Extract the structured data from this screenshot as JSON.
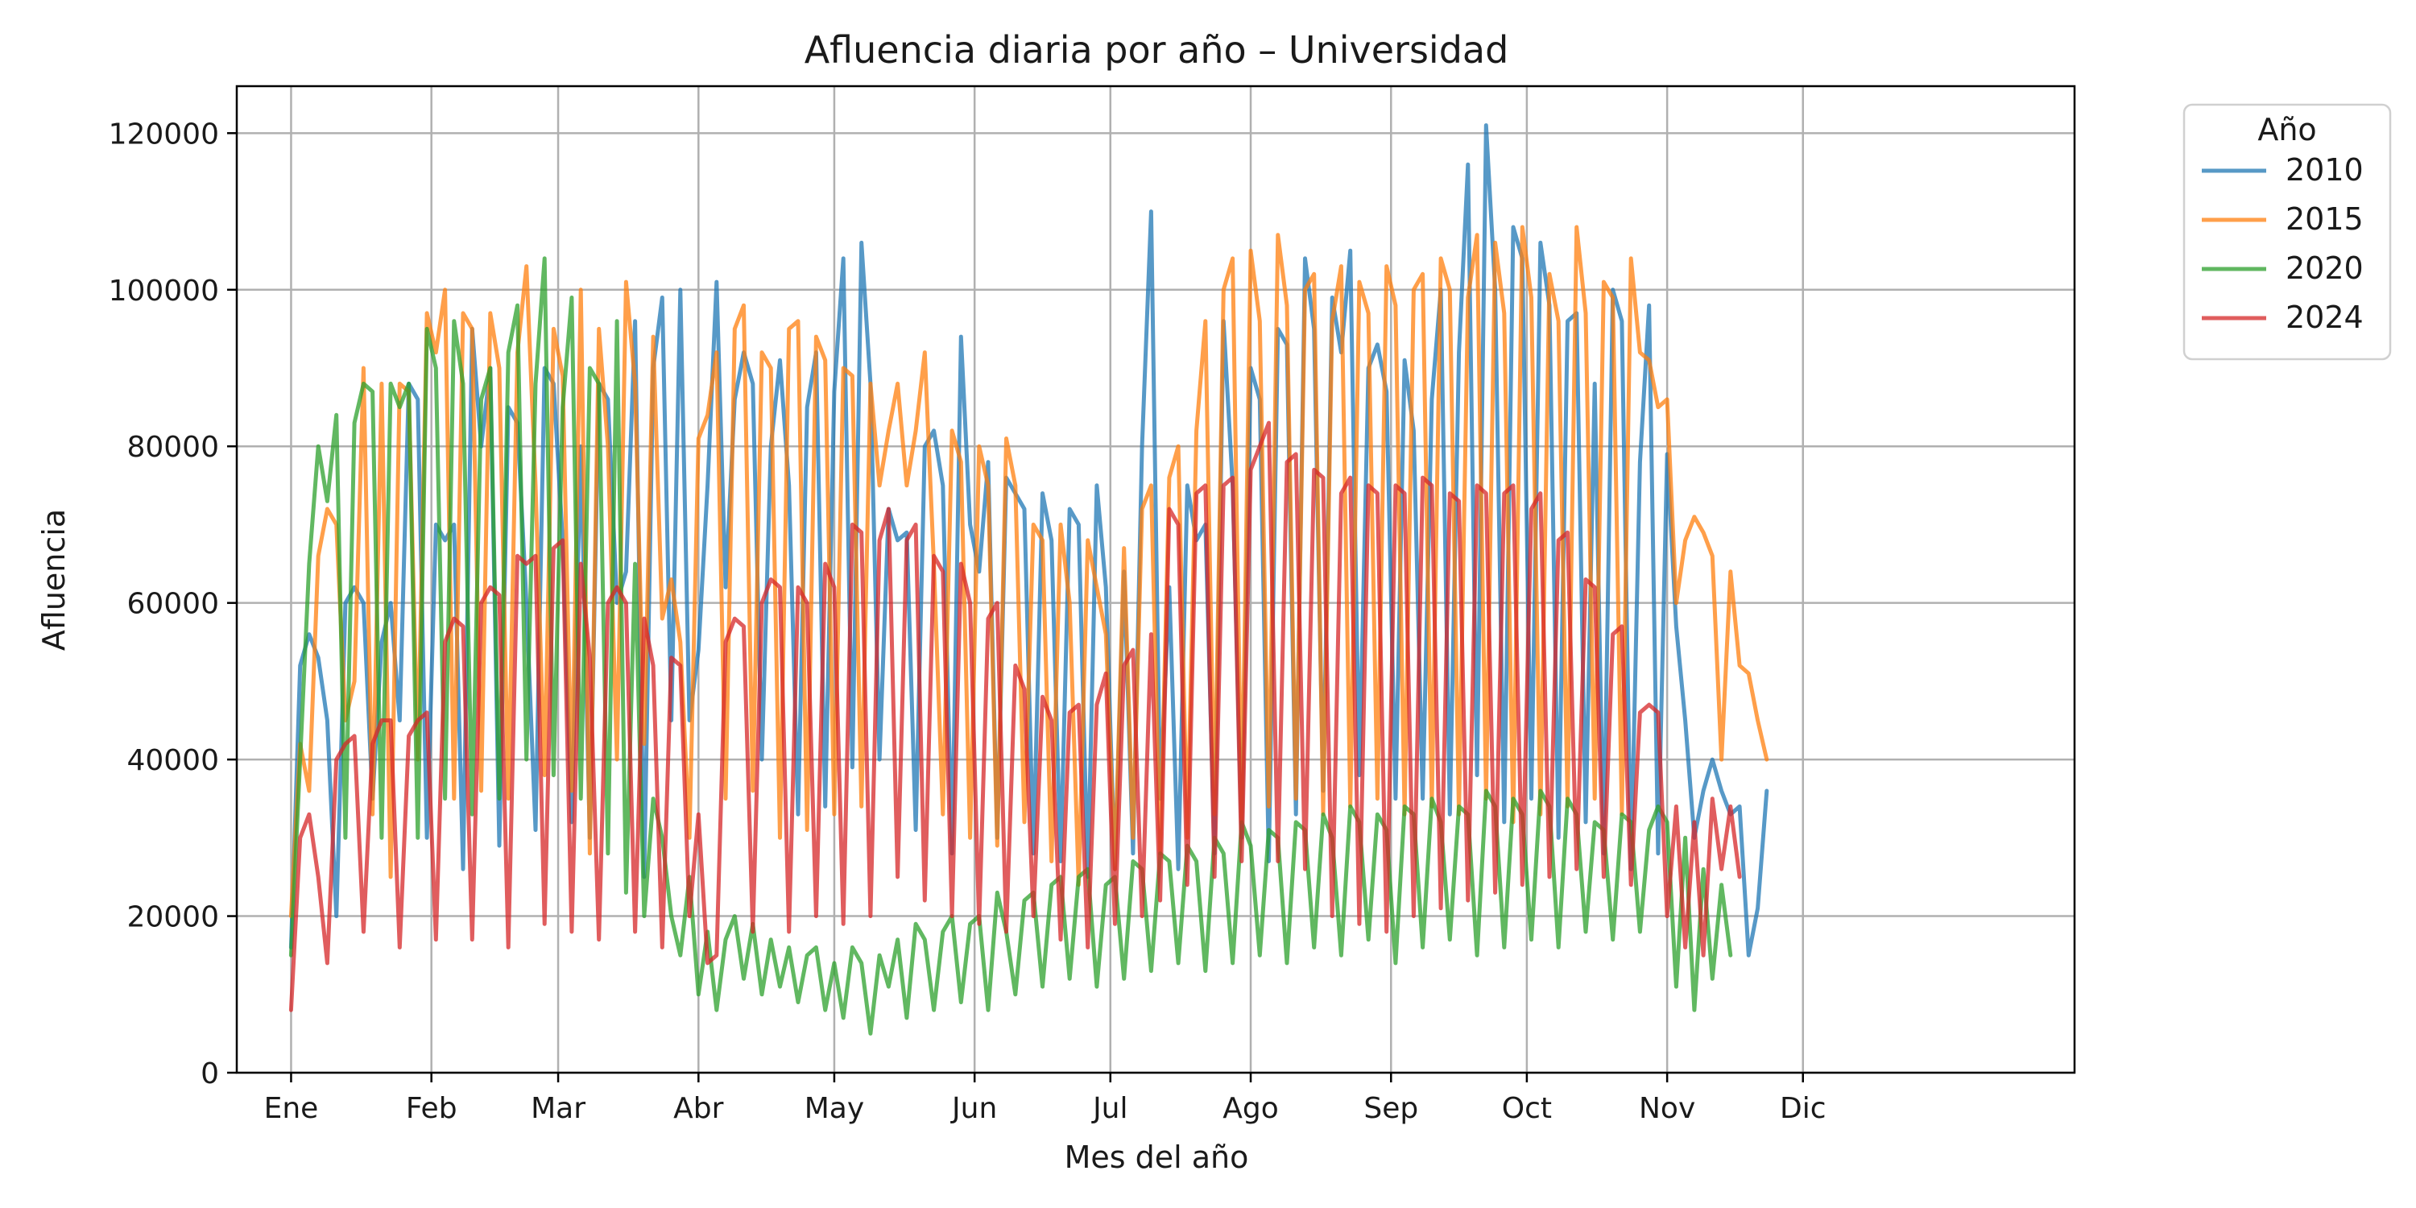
{
  "chart_data": {
    "type": "line",
    "title": "Afluencia diaria por año – Universidad",
    "xlabel": "Mes del año",
    "ylabel": "Afluencia",
    "ylim": [
      0,
      126000
    ],
    "xlim": [
      -12,
      394
    ],
    "y_ticks": [
      0,
      20000,
      40000,
      60000,
      80000,
      100000,
      120000
    ],
    "x_ticks": [
      {
        "label": "Ene",
        "day": 0
      },
      {
        "label": "Feb",
        "day": 31
      },
      {
        "label": "Mar",
        "day": 59
      },
      {
        "label": "Abr",
        "day": 90
      },
      {
        "label": "May",
        "day": 120
      },
      {
        "label": "Jun",
        "day": 151
      },
      {
        "label": "Jul",
        "day": 181
      },
      {
        "label": "Ago",
        "day": 212
      },
      {
        "label": "Sep",
        "day": 243
      },
      {
        "label": "Oct",
        "day": 273
      },
      {
        "label": "Nov",
        "day": 304
      },
      {
        "label": "Dic",
        "day": 334
      }
    ],
    "grid": true,
    "legend": {
      "title": "Año",
      "placement": "outside-top-right"
    },
    "x_step_days": 2,
    "series": [
      {
        "name": "2010",
        "color": "#1f77b4",
        "values": [
          16000,
          52000,
          56000,
          53000,
          45000,
          20000,
          60000,
          62000,
          60000,
          35000,
          55000,
          60000,
          45000,
          88000,
          86000,
          30000,
          70000,
          68000,
          70000,
          26000,
          95000,
          80000,
          90000,
          29000,
          85000,
          83000,
          60000,
          31000,
          90000,
          88000,
          68000,
          32000,
          80000,
          30000,
          88000,
          86000,
          60000,
          64000,
          96000,
          25000,
          90000,
          99000,
          45000,
          100000,
          45000,
          54000,
          75000,
          101000,
          62000,
          86000,
          92000,
          88000,
          40000,
          80000,
          91000,
          75000,
          33000,
          85000,
          92000,
          34000,
          87000,
          104000,
          39000,
          106000,
          88000,
          40000,
          72000,
          68000,
          69000,
          31000,
          80000,
          82000,
          75000,
          28000,
          94000,
          70000,
          64000,
          78000,
          30000,
          76000,
          74000,
          72000,
          28000,
          74000,
          68000,
          27000,
          72000,
          70000,
          25000,
          75000,
          62000,
          26000,
          64000,
          28000,
          80000,
          110000,
          35000,
          62000,
          26000,
          75000,
          68000,
          70000,
          28000,
          96000,
          75000,
          30000,
          90000,
          86000,
          27000,
          95000,
          93000,
          33000,
          104000,
          95000,
          36000,
          99000,
          92000,
          105000,
          38000,
          90000,
          93000,
          87000,
          35000,
          91000,
          82000,
          35000,
          86000,
          100000,
          33000,
          92000,
          116000,
          38000,
          121000,
          100000,
          32000,
          108000,
          104000,
          35000,
          106000,
          98000,
          30000,
          96000,
          97000,
          32000,
          88000,
          28000,
          100000,
          96000,
          26000,
          78000,
          98000,
          28000,
          79000,
          57000,
          45000,
          30000,
          36000,
          40000,
          36000,
          33000,
          34000,
          15000,
          21000,
          36000
        ]
      },
      {
        "name": "2015",
        "color": "#ff7f0e",
        "values": [
          20000,
          42000,
          36000,
          66000,
          72000,
          70000,
          45000,
          50000,
          90000,
          33000,
          88000,
          25000,
          88000,
          87000,
          40000,
          97000,
          92000,
          100000,
          35000,
          97000,
          95000,
          36000,
          97000,
          90000,
          35000,
          92000,
          103000,
          75000,
          38000,
          95000,
          89000,
          36000,
          100000,
          28000,
          95000,
          80000,
          40000,
          101000,
          88000,
          42000,
          94000,
          58000,
          63000,
          55000,
          30000,
          81000,
          84000,
          92000,
          35000,
          95000,
          98000,
          36000,
          92000,
          90000,
          30000,
          95000,
          96000,
          31000,
          94000,
          91000,
          33000,
          90000,
          89000,
          34000,
          88000,
          75000,
          82000,
          88000,
          75000,
          82000,
          92000,
          65000,
          33000,
          82000,
          78000,
          30000,
          80000,
          75000,
          29000,
          81000,
          75000,
          32000,
          70000,
          68000,
          27000,
          70000,
          60000,
          24000,
          68000,
          62000,
          56000,
          26000,
          67000,
          30000,
          72000,
          75000,
          28000,
          76000,
          80000,
          30000,
          82000,
          96000,
          33000,
          100000,
          104000,
          32000,
          105000,
          96000,
          34000,
          107000,
          98000,
          35000,
          100000,
          102000,
          33000,
          96000,
          103000,
          34000,
          101000,
          97000,
          35000,
          103000,
          98000,
          33000,
          100000,
          102000,
          34000,
          104000,
          100000,
          33000,
          99000,
          107000,
          35000,
          106000,
          97000,
          32000,
          108000,
          99000,
          33000,
          102000,
          96000,
          34000,
          108000,
          97000,
          35000,
          101000,
          99000,
          33000,
          104000,
          92000,
          91000,
          85000,
          86000,
          60000,
          68000,
          71000,
          69000,
          66000,
          40000,
          64000,
          52000,
          51000,
          45000,
          40000
        ]
      },
      {
        "name": "2020",
        "color": "#2ca02c",
        "values": [
          15000,
          40000,
          65000,
          80000,
          73000,
          84000,
          30000,
          83000,
          88000,
          87000,
          30000,
          88000,
          85000,
          88000,
          30000,
          95000,
          90000,
          35000,
          96000,
          88000,
          33000,
          86000,
          90000,
          35000,
          92000,
          98000,
          40000,
          88000,
          104000,
          38000,
          85000,
          99000,
          35000,
          90000,
          88000,
          28000,
          96000,
          23000,
          65000,
          20000,
          35000,
          30000,
          20000,
          15000,
          25000,
          10000,
          18000,
          8000,
          17000,
          20000,
          12000,
          19000,
          10000,
          17000,
          11000,
          16000,
          9000,
          15000,
          16000,
          8000,
          14000,
          7000,
          16000,
          14000,
          5000,
          15000,
          11000,
          17000,
          7000,
          19000,
          17000,
          8000,
          18000,
          20000,
          9000,
          19000,
          20000,
          8000,
          23000,
          18000,
          10000,
          22000,
          23000,
          11000,
          24000,
          25000,
          12000,
          25000,
          26000,
          11000,
          24000,
          25000,
          12000,
          27000,
          26000,
          13000,
          28000,
          27000,
          14000,
          29000,
          27000,
          13000,
          30000,
          28000,
          14000,
          32000,
          29000,
          15000,
          31000,
          30000,
          14000,
          32000,
          31000,
          16000,
          33000,
          30000,
          15000,
          34000,
          32000,
          17000,
          33000,
          31000,
          14000,
          34000,
          33000,
          16000,
          35000,
          32000,
          17000,
          34000,
          33000,
          15000,
          36000,
          34000,
          16000,
          35000,
          33000,
          17000,
          36000,
          34000,
          16000,
          35000,
          33000,
          18000,
          32000,
          31000,
          17000,
          33000,
          32000,
          18000,
          31000,
          34000,
          32000,
          11000,
          30000,
          8000,
          26000,
          12000,
          24000,
          15000
        ]
      },
      {
        "name": "2024",
        "color": "#d62728",
        "values": [
          8000,
          30000,
          33000,
          25000,
          14000,
          40000,
          42000,
          43000,
          18000,
          42000,
          45000,
          45000,
          16000,
          43000,
          45000,
          46000,
          17000,
          55000,
          58000,
          57000,
          17000,
          60000,
          62000,
          61000,
          16000,
          66000,
          65000,
          66000,
          19000,
          67000,
          68000,
          18000,
          65000,
          53000,
          17000,
          60000,
          62000,
          60000,
          18000,
          58000,
          52000,
          16000,
          53000,
          52000,
          20000,
          33000,
          14000,
          15000,
          55000,
          58000,
          57000,
          18000,
          60000,
          63000,
          62000,
          18000,
          62000,
          60000,
          20000,
          65000,
          62000,
          19000,
          70000,
          69000,
          20000,
          68000,
          72000,
          25000,
          68000,
          70000,
          22000,
          66000,
          64000,
          20000,
          65000,
          60000,
          19000,
          58000,
          60000,
          18000,
          52000,
          49000,
          20000,
          48000,
          45000,
          17000,
          46000,
          47000,
          16000,
          47000,
          51000,
          19000,
          52000,
          54000,
          20000,
          56000,
          22000,
          72000,
          70000,
          24000,
          74000,
          75000,
          25000,
          75000,
          76000,
          27000,
          77000,
          80000,
          83000,
          27000,
          78000,
          79000,
          26000,
          77000,
          76000,
          20000,
          74000,
          76000,
          19000,
          75000,
          74000,
          18000,
          75000,
          74000,
          20000,
          76000,
          75000,
          21000,
          74000,
          73000,
          22000,
          75000,
          74000,
          23000,
          74000,
          75000,
          24000,
          72000,
          74000,
          25000,
          68000,
          69000,
          26000,
          63000,
          62000,
          25000,
          56000,
          57000,
          24000,
          46000,
          47000,
          46000,
          20000,
          34000,
          16000,
          32000,
          15000,
          35000,
          26000,
          34000,
          25000
        ]
      }
    ]
  }
}
